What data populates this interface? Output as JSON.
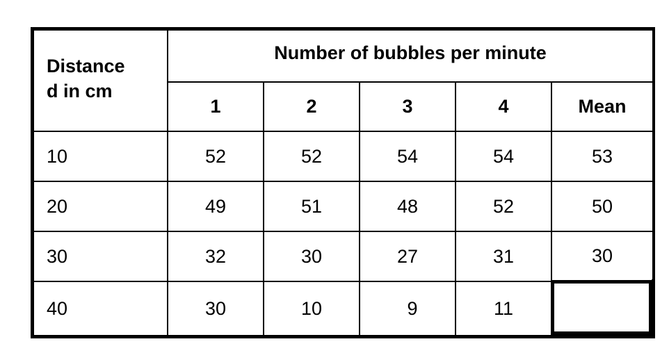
{
  "table": {
    "distance_header_line1": "Distance",
    "distance_header_line2": "d in cm",
    "group_header": "Number of bubbles per minute",
    "trial_headers": [
      "1",
      "2",
      "3",
      "4",
      "Mean"
    ],
    "rows": [
      {
        "distance": "10",
        "values": [
          "52",
          "52",
          "54",
          "54",
          "53"
        ]
      },
      {
        "distance": "20",
        "values": [
          "49",
          "51",
          "48",
          "52",
          "50"
        ]
      },
      {
        "distance": "30",
        "values": [
          "32",
          "30",
          "27",
          "31",
          "30"
        ]
      },
      {
        "distance": "40",
        "values": [
          "30",
          "10",
          "9",
          "11",
          ""
        ]
      }
    ]
  }
}
